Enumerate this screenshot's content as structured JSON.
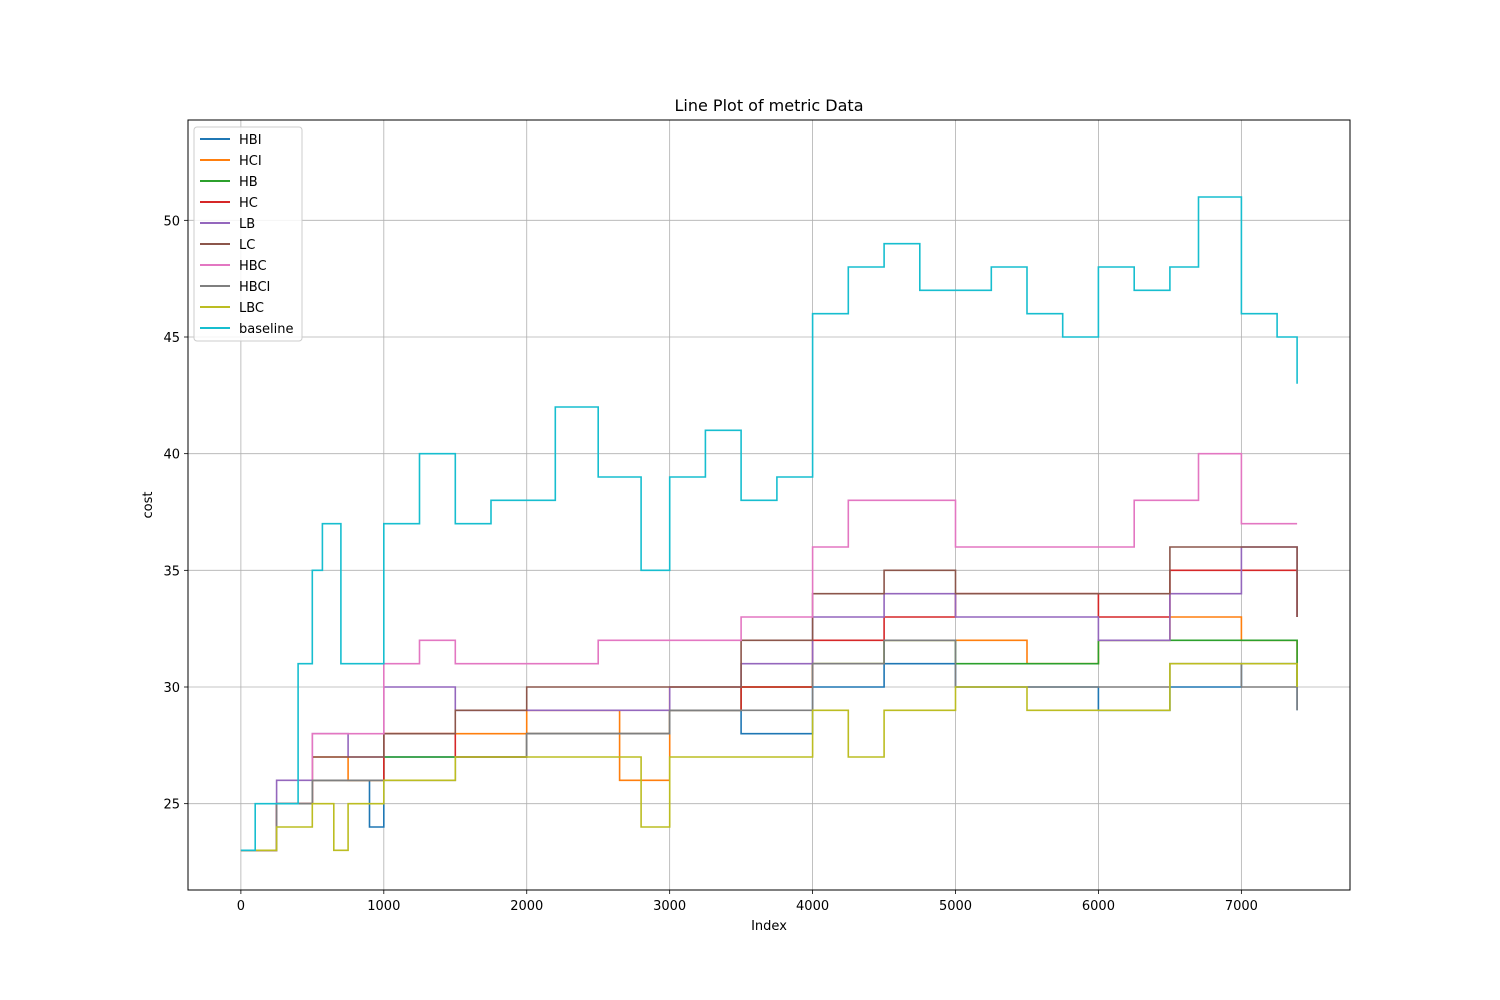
{
  "chart_data": {
    "type": "line",
    "title": "Line Plot of metric Data",
    "xlabel": "Index",
    "ylabel": "cost",
    "xlim": [
      -370,
      7760
    ],
    "ylim": [
      21.3,
      54.3
    ],
    "xticks": [
      0,
      1000,
      2000,
      3000,
      4000,
      5000,
      6000,
      7000
    ],
    "yticks": [
      25,
      30,
      35,
      40,
      45,
      50
    ],
    "grid": true,
    "legend_position": "upper-left",
    "series": [
      {
        "name": "HBI",
        "color": "#1f77b4",
        "x": [
          0,
          250,
          500,
          750,
          900,
          1000,
          1500,
          2000,
          2500,
          3000,
          3500,
          4000,
          4500,
          5000,
          5500,
          6000,
          6500,
          7000,
          7390
        ],
        "values": [
          23,
          25,
          26,
          26,
          24,
          27,
          27,
          28,
          28,
          29,
          28,
          30,
          31,
          30,
          30,
          29,
          30,
          31,
          29
        ]
      },
      {
        "name": "HCI",
        "color": "#ff7f0e",
        "x": [
          0,
          250,
          500,
          750,
          1000,
          1500,
          2000,
          2500,
          2650,
          3000,
          3500,
          4000,
          4500,
          5000,
          5500,
          6000,
          6500,
          7000,
          7390
        ],
        "values": [
          23,
          25,
          27,
          26,
          28,
          28,
          29,
          29,
          26,
          30,
          30,
          31,
          32,
          32,
          31,
          32,
          33,
          32,
          30
        ]
      },
      {
        "name": "HB",
        "color": "#2ca02c",
        "x": [
          0,
          250,
          500,
          750,
          1000,
          1500,
          2000,
          2500,
          3000,
          3500,
          4000,
          4500,
          5000,
          5500,
          6000,
          6500,
          7000,
          7390
        ],
        "values": [
          23,
          25,
          26,
          26,
          27,
          27,
          28,
          28,
          29,
          30,
          31,
          32,
          31,
          31,
          32,
          32,
          32,
          30
        ]
      },
      {
        "name": "HC",
        "color": "#d62728",
        "x": [
          0,
          250,
          500,
          750,
          1000,
          1500,
          2000,
          2500,
          3000,
          3500,
          4000,
          4500,
          5000,
          5500,
          6000,
          6500,
          7000,
          7390
        ],
        "values": [
          23,
          25,
          26,
          26,
          28,
          27,
          28,
          28,
          29,
          30,
          32,
          33,
          34,
          34,
          33,
          35,
          35,
          33
        ]
      },
      {
        "name": "LB",
        "color": "#9467bd",
        "x": [
          0,
          250,
          500,
          750,
          1000,
          1500,
          2000,
          2500,
          3000,
          3500,
          4000,
          4500,
          5000,
          5500,
          6000,
          6500,
          7000,
          7390
        ],
        "values": [
          23,
          26,
          28,
          27,
          30,
          29,
          29,
          29,
          30,
          31,
          33,
          34,
          33,
          33,
          32,
          34,
          36,
          33
        ]
      },
      {
        "name": "LC",
        "color": "#8c564b",
        "x": [
          0,
          250,
          500,
          750,
          1000,
          1500,
          2000,
          2500,
          3000,
          3500,
          4000,
          4500,
          5000,
          5500,
          6000,
          6500,
          7000,
          7390
        ],
        "values": [
          23,
          25,
          27,
          27,
          28,
          29,
          30,
          30,
          30,
          32,
          34,
          35,
          34,
          34,
          34,
          36,
          36,
          33
        ]
      },
      {
        "name": "HBC",
        "color": "#e377c2",
        "x": [
          0,
          250,
          500,
          750,
          1000,
          1250,
          1500,
          2000,
          2500,
          3000,
          3500,
          4000,
          4250,
          4500,
          5000,
          5500,
          6000,
          6250,
          6500,
          6700,
          7000,
          7390
        ],
        "values": [
          23,
          25,
          28,
          28,
          31,
          32,
          31,
          31,
          32,
          32,
          33,
          36,
          38,
          38,
          36,
          36,
          36,
          38,
          38,
          40,
          37,
          37
        ]
      },
      {
        "name": "HBCI",
        "color": "#7f7f7f",
        "x": [
          0,
          250,
          500,
          750,
          1000,
          1500,
          2000,
          2500,
          3000,
          3500,
          4000,
          4500,
          5000,
          5500,
          6000,
          6500,
          7000,
          7390
        ],
        "values": [
          23,
          25,
          26,
          26,
          26,
          27,
          28,
          28,
          29,
          29,
          31,
          32,
          30,
          30,
          30,
          31,
          30,
          29
        ]
      },
      {
        "name": "LBC",
        "color": "#bcbd22",
        "x": [
          0,
          250,
          500,
          650,
          750,
          1000,
          1500,
          2000,
          2500,
          2800,
          3000,
          3500,
          4000,
          4250,
          4500,
          5000,
          5500,
          6000,
          6500,
          7000,
          7390
        ],
        "values": [
          23,
          24,
          25,
          23,
          25,
          26,
          27,
          27,
          27,
          24,
          27,
          27,
          29,
          27,
          29,
          30,
          29,
          29,
          31,
          31,
          30
        ]
      },
      {
        "name": "baseline",
        "color": "#17becf",
        "x": [
          0,
          100,
          250,
          400,
          500,
          570,
          700,
          1000,
          1250,
          1500,
          1750,
          2000,
          2200,
          2500,
          2800,
          3000,
          3250,
          3500,
          3750,
          4000,
          4250,
          4500,
          4750,
          5000,
          5250,
          5500,
          5750,
          6000,
          6250,
          6500,
          6700,
          7000,
          7250,
          7390
        ],
        "values": [
          23,
          25,
          25,
          31,
          35,
          37,
          31,
          37,
          40,
          37,
          38,
          38,
          42,
          39,
          35,
          39,
          41,
          38,
          39,
          46,
          48,
          49,
          47,
          47,
          48,
          46,
          45,
          48,
          47,
          48,
          51,
          46,
          45,
          43
        ]
      }
    ]
  }
}
